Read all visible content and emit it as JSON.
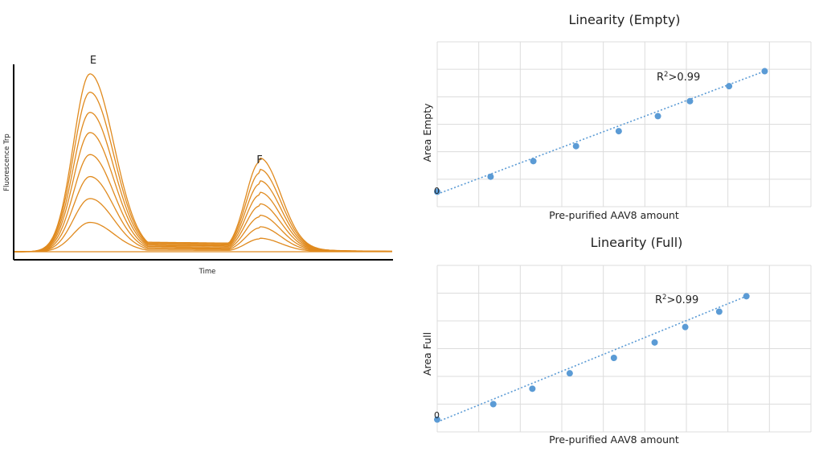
{
  "chart_data": [
    {
      "type": "line",
      "xlabel": "Time",
      "ylabel": "Fluorescence Trp",
      "axis_ticks": "none",
      "peak_labels": [
        {
          "text": "E",
          "x": 0.2
        },
        {
          "text": "F",
          "x": 0.65
        }
      ],
      "series": [
        {
          "peakE": 0.0,
          "peakF": 0.0
        },
        {
          "peakE": 0.16,
          "peakF": 0.07
        },
        {
          "peakE": 0.29,
          "peakF": 0.13
        },
        {
          "peakE": 0.41,
          "peakF": 0.19
        },
        {
          "peakE": 0.53,
          "peakF": 0.25
        },
        {
          "peakE": 0.65,
          "peakF": 0.31
        },
        {
          "peakE": 0.76,
          "peakF": 0.37
        },
        {
          "peakE": 0.87,
          "peakF": 0.43
        },
        {
          "peakE": 0.97,
          "peakF": 0.49
        }
      ],
      "x_peak_centers": {
        "E": 0.2,
        "F": 0.65
      },
      "color": "#E08A1E"
    },
    {
      "type": "scatter",
      "title": "Linearity (Empty)",
      "xlabel": "Pre-purified AAV8 amount",
      "ylabel": "Area Empty",
      "origin_label": "0",
      "annotation": {
        "base": "R",
        "sup": "2",
        "rest": ">0.99"
      },
      "x": [
        0,
        1.5,
        2.7,
        3.9,
        5.1,
        6.2,
        7.1,
        8.2,
        9.2
      ],
      "y": [
        0,
        0.5,
        1.02,
        1.52,
        2.02,
        2.52,
        3.02,
        3.52,
        4.02
      ],
      "xlim": [
        0,
        10.5
      ],
      "ylim": [
        -0.5,
        5.0
      ],
      "trendline": "dotted",
      "grid": true,
      "color": "#5B9BD5"
    },
    {
      "type": "scatter",
      "title": "Linearity (Full)",
      "xlabel": "Pre-purified AAV8 amount",
      "ylabel": "Area Full",
      "origin_label": "0",
      "annotation": {
        "base": "R",
        "sup": "2",
        "rest": ">0.99"
      },
      "x": [
        0,
        1.65,
        2.8,
        3.9,
        5.2,
        6.4,
        7.3,
        8.3,
        9.1
      ],
      "y": [
        0,
        0.5,
        1.0,
        1.5,
        2.0,
        2.5,
        3.0,
        3.5,
        4.0
      ],
      "xlim": [
        0,
        11.0
      ],
      "ylim": [
        -0.4,
        5.0
      ],
      "trendline": "dotted",
      "grid": true,
      "color": "#5B9BD5"
    }
  ]
}
